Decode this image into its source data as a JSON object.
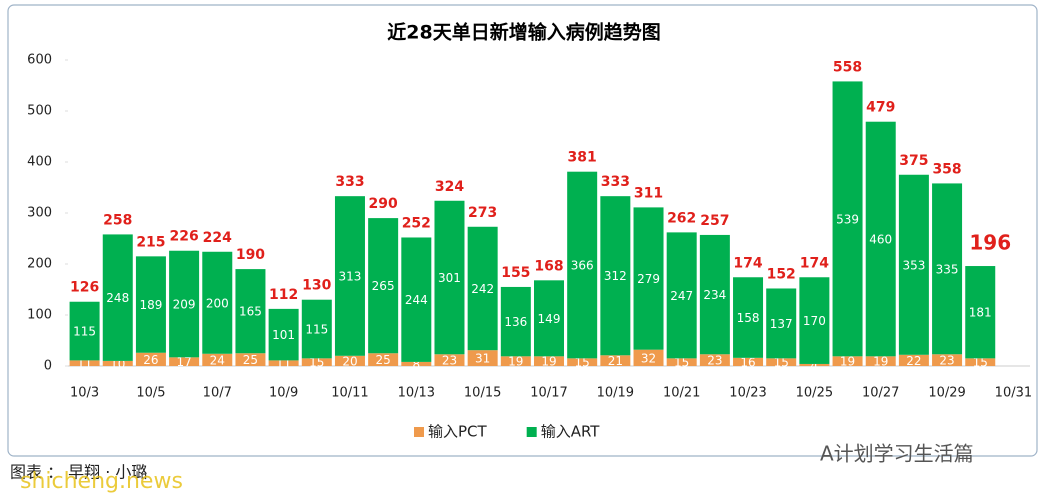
{
  "chart_data": {
    "type": "stacked_bar",
    "title": "近28天单日新增输入病例趋势图",
    "categories": [
      "10/3",
      null,
      "10/5",
      null,
      "10/7",
      null,
      "10/9",
      null,
      "10/11",
      null,
      "10/13",
      null,
      "10/15",
      null,
      "10/17",
      null,
      "10/19",
      null,
      "10/21",
      null,
      "10/23",
      null,
      "10/25",
      null,
      "10/27",
      null,
      "10/29",
      null,
      "10/31"
    ],
    "series": [
      {
        "name": "输入PCT",
        "color": "#ef9a4c",
        "values": [
          11,
          10,
          26,
          17,
          24,
          25,
          11,
          15,
          20,
          25,
          8,
          23,
          31,
          19,
          19,
          15,
          21,
          32,
          15,
          23,
          16,
          15,
          4,
          19,
          19,
          22,
          23,
          15,
          null
        ]
      },
      {
        "name": "输入ART",
        "color": "#00b050",
        "values": [
          115,
          248,
          189,
          209,
          200,
          165,
          101,
          115,
          313,
          265,
          244,
          301,
          242,
          136,
          149,
          366,
          312,
          279,
          247,
          234,
          158,
          137,
          170,
          539,
          460,
          353,
          335,
          181,
          null
        ]
      }
    ],
    "totals": [
      126,
      258,
      215,
      226,
      224,
      190,
      112,
      130,
      333,
      290,
      252,
      324,
      273,
      155,
      168,
      381,
      333,
      311,
      262,
      257,
      174,
      152,
      174,
      558,
      479,
      375,
      358,
      196,
      null
    ],
    "totals_color": "#e0201b",
    "ylim": [
      0,
      600
    ],
    "yticks": [
      0,
      100,
      200,
      300,
      400,
      500,
      600
    ],
    "legend": "bottom",
    "credit": "图表 ： 早翔 · 小璐",
    "watermark": "A计划学习生活篇",
    "site": "shicheng.news"
  }
}
